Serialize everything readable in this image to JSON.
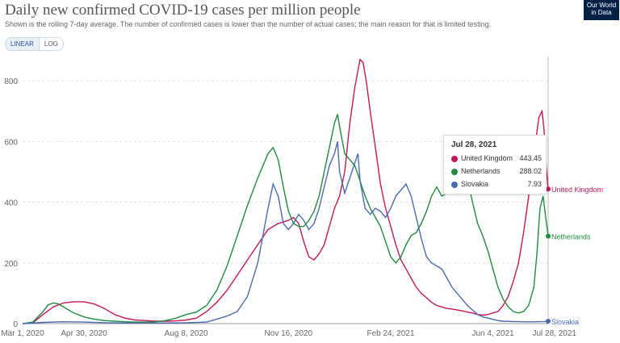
{
  "header": {
    "title": "Daily new confirmed COVID-19 cases per million people",
    "subtitle": "Shown is the rolling 7-day average. The number of confirmed cases is lower than the number of actual cases; the main reason for that is limited testing.",
    "logo_line1": "Our World",
    "logo_line2": "in Data"
  },
  "controls": {
    "linear_label": "LINEAR",
    "log_label": "LOG",
    "selected": "LINEAR"
  },
  "tooltip": {
    "date": "Jul 28, 2021",
    "rows": [
      {
        "name": "United Kingdom",
        "value": "443.45",
        "color": "#c2185b"
      },
      {
        "name": "Netherlands",
        "value": "288.02",
        "color": "#1e8a3e"
      },
      {
        "name": "Slovakia",
        "value": "7.93",
        "color": "#4a6ab0"
      }
    ]
  },
  "chart_data": {
    "type": "line",
    "title": "Daily new confirmed COVID-19 cases per million people",
    "xlabel": "",
    "ylabel": "",
    "ylim": [
      0,
      880
    ],
    "y_ticks": [
      0,
      200,
      400,
      600,
      800
    ],
    "x_ticks": [
      "Mar 1, 2020",
      "Apr 30, 2020",
      "Aug 8, 2020",
      "Nov 16, 2020",
      "Feb 24, 2021",
      "Jun 4, 2021",
      "Jul 28, 2021"
    ],
    "x_tick_days": [
      0,
      60,
      160,
      260,
      360,
      460,
      514
    ],
    "x_range_days": [
      0,
      514
    ],
    "grid": "horizontal",
    "series": [
      {
        "name": "United Kingdom",
        "color": "#c2185b",
        "end_label": "United Kingdom",
        "points": [
          [
            0,
            0
          ],
          [
            10,
            3
          ],
          [
            20,
            30
          ],
          [
            30,
            55
          ],
          [
            40,
            68
          ],
          [
            50,
            72
          ],
          [
            60,
            72
          ],
          [
            70,
            65
          ],
          [
            80,
            50
          ],
          [
            90,
            30
          ],
          [
            100,
            18
          ],
          [
            110,
            12
          ],
          [
            120,
            10
          ],
          [
            130,
            8
          ],
          [
            140,
            8
          ],
          [
            150,
            9
          ],
          [
            160,
            12
          ],
          [
            170,
            18
          ],
          [
            180,
            40
          ],
          [
            190,
            70
          ],
          [
            200,
            110
          ],
          [
            210,
            160
          ],
          [
            220,
            210
          ],
          [
            230,
            260
          ],
          [
            240,
            310
          ],
          [
            250,
            330
          ],
          [
            260,
            340
          ],
          [
            265,
            350
          ],
          [
            270,
            330
          ],
          [
            275,
            270
          ],
          [
            280,
            220
          ],
          [
            285,
            210
          ],
          [
            290,
            230
          ],
          [
            295,
            260
          ],
          [
            300,
            320
          ],
          [
            305,
            380
          ],
          [
            310,
            420
          ],
          [
            315,
            500
          ],
          [
            320,
            660
          ],
          [
            325,
            780
          ],
          [
            330,
            870
          ],
          [
            333,
            860
          ],
          [
            336,
            800
          ],
          [
            340,
            700
          ],
          [
            345,
            580
          ],
          [
            350,
            460
          ],
          [
            355,
            380
          ],
          [
            360,
            320
          ],
          [
            365,
            260
          ],
          [
            370,
            210
          ],
          [
            375,
            180
          ],
          [
            380,
            150
          ],
          [
            385,
            120
          ],
          [
            390,
            100
          ],
          [
            395,
            85
          ],
          [
            400,
            70
          ],
          [
            405,
            60
          ],
          [
            410,
            55
          ],
          [
            415,
            50
          ],
          [
            420,
            48
          ],
          [
            425,
            45
          ],
          [
            430,
            42
          ],
          [
            435,
            38
          ],
          [
            440,
            35
          ],
          [
            445,
            30
          ],
          [
            450,
            28
          ],
          [
            455,
            30
          ],
          [
            460,
            35
          ],
          [
            465,
            40
          ],
          [
            470,
            60
          ],
          [
            475,
            90
          ],
          [
            480,
            140
          ],
          [
            485,
            200
          ],
          [
            490,
            300
          ],
          [
            495,
            420
          ],
          [
            500,
            560
          ],
          [
            505,
            680
          ],
          [
            508,
            700
          ],
          [
            510,
            640
          ],
          [
            512,
            520
          ],
          [
            514,
            443.45
          ]
        ]
      },
      {
        "name": "Netherlands",
        "color": "#1e8a3e",
        "end_label": "Netherlands",
        "points": [
          [
            0,
            0
          ],
          [
            10,
            5
          ],
          [
            20,
            40
          ],
          [
            25,
            62
          ],
          [
            30,
            68
          ],
          [
            35,
            65
          ],
          [
            40,
            55
          ],
          [
            50,
            35
          ],
          [
            60,
            22
          ],
          [
            70,
            15
          ],
          [
            80,
            10
          ],
          [
            90,
            8
          ],
          [
            100,
            6
          ],
          [
            110,
            5
          ],
          [
            120,
            5
          ],
          [
            130,
            6
          ],
          [
            140,
            10
          ],
          [
            150,
            18
          ],
          [
            160,
            30
          ],
          [
            170,
            38
          ],
          [
            180,
            60
          ],
          [
            190,
            110
          ],
          [
            200,
            190
          ],
          [
            210,
            290
          ],
          [
            220,
            390
          ],
          [
            230,
            480
          ],
          [
            240,
            560
          ],
          [
            245,
            580
          ],
          [
            250,
            540
          ],
          [
            255,
            450
          ],
          [
            260,
            370
          ],
          [
            265,
            330
          ],
          [
            270,
            320
          ],
          [
            275,
            320
          ],
          [
            280,
            340
          ],
          [
            285,
            370
          ],
          [
            290,
            420
          ],
          [
            295,
            500
          ],
          [
            300,
            580
          ],
          [
            305,
            660
          ],
          [
            308,
            690
          ],
          [
            310,
            650
          ],
          [
            315,
            560
          ],
          [
            320,
            540
          ],
          [
            325,
            520
          ],
          [
            330,
            470
          ],
          [
            335,
            420
          ],
          [
            340,
            380
          ],
          [
            345,
            350
          ],
          [
            350,
            320
          ],
          [
            355,
            270
          ],
          [
            360,
            220
          ],
          [
            365,
            200
          ],
          [
            370,
            220
          ],
          [
            375,
            260
          ],
          [
            380,
            290
          ],
          [
            385,
            300
          ],
          [
            390,
            330
          ],
          [
            395,
            370
          ],
          [
            400,
            420
          ],
          [
            405,
            450
          ],
          [
            410,
            420
          ],
          [
            415,
            430
          ],
          [
            420,
            470
          ],
          [
            425,
            510
          ],
          [
            430,
            530
          ],
          [
            435,
            480
          ],
          [
            440,
            400
          ],
          [
            445,
            330
          ],
          [
            450,
            290
          ],
          [
            455,
            240
          ],
          [
            460,
            180
          ],
          [
            465,
            120
          ],
          [
            470,
            80
          ],
          [
            475,
            55
          ],
          [
            480,
            40
          ],
          [
            485,
            35
          ],
          [
            490,
            40
          ],
          [
            495,
            60
          ],
          [
            500,
            120
          ],
          [
            503,
            230
          ],
          [
            506,
            380
          ],
          [
            509,
            420
          ],
          [
            512,
            340
          ],
          [
            514,
            288.02
          ]
        ]
      },
      {
        "name": "Slovakia",
        "color": "#4a6ab0",
        "end_label": "Slovakia",
        "points": [
          [
            0,
            0
          ],
          [
            20,
            4
          ],
          [
            40,
            6
          ],
          [
            60,
            5
          ],
          [
            80,
            3
          ],
          [
            100,
            2
          ],
          [
            120,
            2
          ],
          [
            140,
            2
          ],
          [
            160,
            3
          ],
          [
            180,
            5
          ],
          [
            190,
            15
          ],
          [
            200,
            25
          ],
          [
            210,
            40
          ],
          [
            220,
            90
          ],
          [
            230,
            200
          ],
          [
            240,
            380
          ],
          [
            245,
            460
          ],
          [
            250,
            420
          ],
          [
            255,
            330
          ],
          [
            260,
            310
          ],
          [
            265,
            330
          ],
          [
            270,
            360
          ],
          [
            275,
            340
          ],
          [
            280,
            310
          ],
          [
            285,
            330
          ],
          [
            290,
            380
          ],
          [
            295,
            450
          ],
          [
            300,
            520
          ],
          [
            305,
            560
          ],
          [
            308,
            600
          ],
          [
            310,
            500
          ],
          [
            315,
            430
          ],
          [
            320,
            480
          ],
          [
            325,
            530
          ],
          [
            328,
            560
          ],
          [
            330,
            470
          ],
          [
            335,
            380
          ],
          [
            340,
            360
          ],
          [
            345,
            380
          ],
          [
            350,
            370
          ],
          [
            355,
            350
          ],
          [
            360,
            380
          ],
          [
            365,
            420
          ],
          [
            370,
            440
          ],
          [
            375,
            460
          ],
          [
            380,
            420
          ],
          [
            385,
            350
          ],
          [
            390,
            280
          ],
          [
            395,
            220
          ],
          [
            400,
            200
          ],
          [
            405,
            190
          ],
          [
            410,
            180
          ],
          [
            415,
            150
          ],
          [
            420,
            120
          ],
          [
            425,
            100
          ],
          [
            430,
            80
          ],
          [
            435,
            60
          ],
          [
            440,
            45
          ],
          [
            445,
            30
          ],
          [
            450,
            22
          ],
          [
            455,
            18
          ],
          [
            460,
            14
          ],
          [
            465,
            10
          ],
          [
            470,
            8
          ],
          [
            480,
            7
          ],
          [
            490,
            6
          ],
          [
            500,
            6
          ],
          [
            510,
            7
          ],
          [
            514,
            7.93
          ]
        ]
      }
    ]
  }
}
